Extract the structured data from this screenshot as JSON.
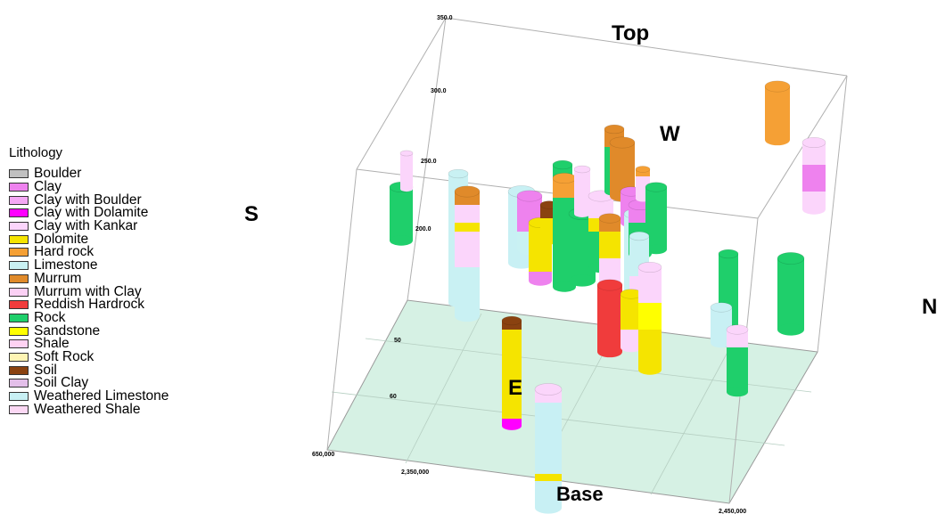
{
  "legend": {
    "title": "Lithology",
    "items": [
      {
        "label": "Boulder",
        "color": "#c0c0c0"
      },
      {
        "label": "Clay",
        "color": "#ee82ee"
      },
      {
        "label": "Clay with Boulder",
        "color": "#f4a8f4"
      },
      {
        "label": "Clay with Dolamite",
        "color": "#ff00ff"
      },
      {
        "label": "Clay with Kankar",
        "color": "#fbd5fb"
      },
      {
        "label": "Dolomite",
        "color": "#f5e400"
      },
      {
        "label": "Hard rock",
        "color": "#f5a035"
      },
      {
        "label": "Limestone",
        "color": "#c9f1f3"
      },
      {
        "label": "Murrum",
        "color": "#e08a2a"
      },
      {
        "label": "Murrum with Clay",
        "color": "#fbd0f4"
      },
      {
        "label": "Reddish Hardrock",
        "color": "#f03c3c"
      },
      {
        "label": "Rock",
        "color": "#1fcf6b"
      },
      {
        "label": "Sandstone",
        "color": "#ffff00"
      },
      {
        "label": "Shale",
        "color": "#ffd2f2"
      },
      {
        "label": "Soft Rock",
        "color": "#fff5b4"
      },
      {
        "label": "Soil",
        "color": "#8a4210"
      },
      {
        "label": "Soil Clay",
        "color": "#e3bfe9"
      },
      {
        "label": "Weathered Limestone",
        "color": "#c8f0f4"
      },
      {
        "label": "Weathered Shale",
        "color": "#fcd8f4"
      }
    ]
  },
  "directions": {
    "top": "Top",
    "base": "Base",
    "west": "W",
    "east": "E",
    "south": "S",
    "north": "N"
  },
  "elevation_labels": [
    "350.0",
    "300.0",
    "250.0",
    "200.0"
  ],
  "partial_labels": [
    "50",
    "60"
  ],
  "axis_labels": [
    "650,000",
    "2,350,000",
    "2,450,000"
  ]
}
